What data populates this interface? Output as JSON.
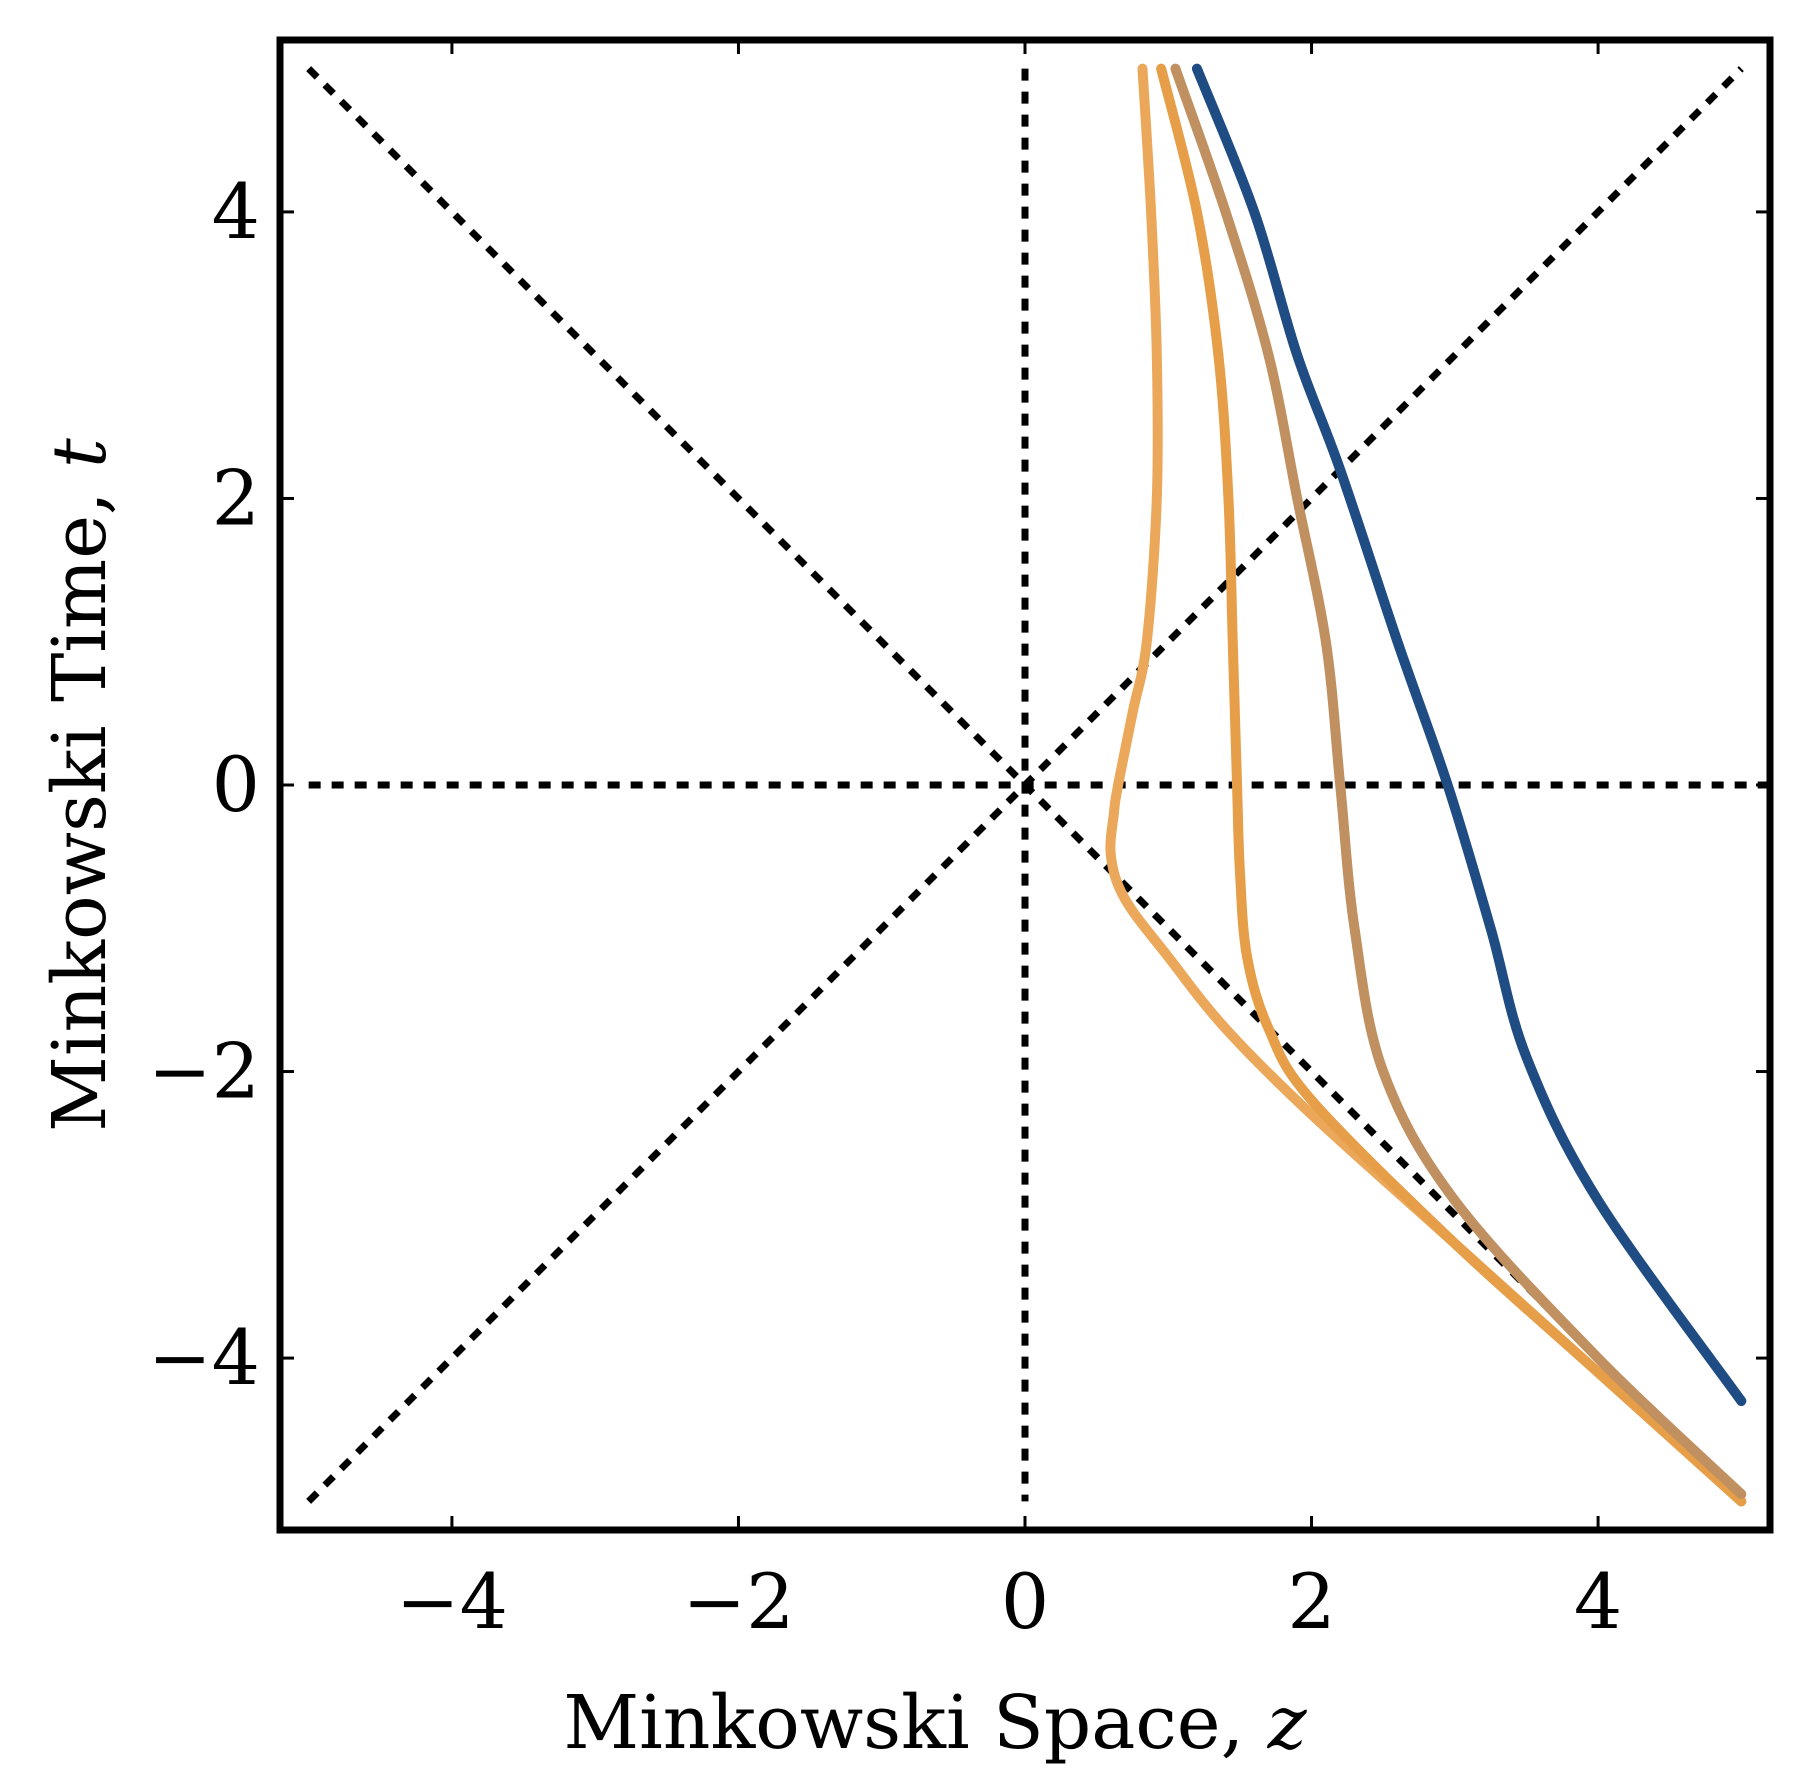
{
  "chart_data": {
    "type": "line",
    "title": "",
    "xlabel": "Minkowski Space,",
    "xlabel_symbol": "z",
    "ylabel": "Minkowski Time,",
    "ylabel_symbol": "t",
    "xlim": [
      -5.2,
      5.2
    ],
    "ylim": [
      -5.2,
      5.2
    ],
    "xticks": [
      -4,
      -2,
      0,
      2,
      4
    ],
    "yticks": [
      -4,
      -2,
      0,
      2,
      4
    ],
    "xtick_labels": [
      "−4",
      "−2",
      "0",
      "2",
      "4"
    ],
    "ytick_labels": [
      "−4",
      "−2",
      "0",
      "2",
      "4"
    ],
    "grid": false,
    "legend": "none",
    "reference_lines": [
      {
        "kind": "vertical",
        "x": 0,
        "from": -5,
        "to": 5,
        "style": "dotted",
        "color": "#000000"
      },
      {
        "kind": "horizontal",
        "y": 0,
        "from": -5,
        "to": 5.2,
        "style": "dotted",
        "color": "#000000"
      },
      {
        "kind": "diagonal",
        "points": [
          [
            -5,
            -5
          ],
          [
            5,
            5
          ]
        ],
        "style": "dotted",
        "color": "#000000"
      },
      {
        "kind": "diagonal",
        "points": [
          [
            -5,
            5
          ],
          [
            5,
            -5
          ]
        ],
        "style": "dotted",
        "color": "#000000"
      }
    ],
    "series": [
      {
        "color": "#EBA85A",
        "points": [
          [
            5.0,
            -5.0
          ],
          [
            4.0,
            -4.1
          ],
          [
            3.0,
            -3.2
          ],
          [
            2.0,
            -2.3
          ],
          [
            1.4,
            -1.7
          ],
          [
            1.0,
            -1.2
          ],
          [
            0.7,
            -0.8
          ],
          [
            0.6,
            -0.5
          ],
          [
            0.62,
            -0.2
          ],
          [
            0.65,
            0.0
          ],
          [
            0.75,
            0.5
          ],
          [
            0.85,
            1.0
          ],
          [
            0.92,
            2.0
          ],
          [
            0.92,
            3.0
          ],
          [
            0.88,
            4.0
          ],
          [
            0.82,
            5.0
          ]
        ]
      },
      {
        "color": "#E69E48",
        "points": [
          [
            5.0,
            -5.0
          ],
          [
            4.0,
            -4.1
          ],
          [
            3.0,
            -3.2
          ],
          [
            2.0,
            -2.2
          ],
          [
            1.7,
            -1.7
          ],
          [
            1.55,
            -1.2
          ],
          [
            1.5,
            -0.6
          ],
          [
            1.48,
            0.0
          ],
          [
            1.45,
            1.0
          ],
          [
            1.42,
            2.0
          ],
          [
            1.35,
            3.0
          ],
          [
            1.2,
            4.0
          ],
          [
            0.95,
            5.0
          ]
        ]
      },
      {
        "color": "#C09060",
        "points": [
          [
            5.0,
            -4.95
          ],
          [
            4.0,
            -4.0
          ],
          [
            3.0,
            -2.9
          ],
          [
            2.5,
            -2.0
          ],
          [
            2.3,
            -1.0
          ],
          [
            2.2,
            0.0
          ],
          [
            2.1,
            1.0
          ],
          [
            1.9,
            2.0
          ],
          [
            1.7,
            3.0
          ],
          [
            1.4,
            4.0
          ],
          [
            1.05,
            5.0
          ]
        ]
      },
      {
        "color": "#1F4C82",
        "points": [
          [
            5.0,
            -4.3
          ],
          [
            4.0,
            -2.9
          ],
          [
            3.5,
            -1.9
          ],
          [
            3.25,
            -1.0
          ],
          [
            2.95,
            0.0
          ],
          [
            2.6,
            1.0
          ],
          [
            2.2,
            2.2
          ],
          [
            1.9,
            3.0
          ],
          [
            1.6,
            4.0
          ],
          [
            1.2,
            5.0
          ]
        ]
      }
    ]
  }
}
